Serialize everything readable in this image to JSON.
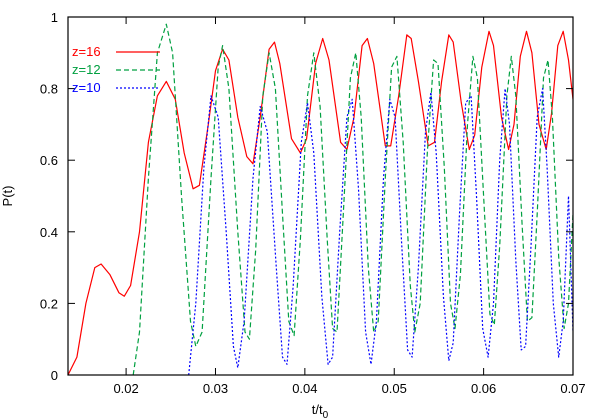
{
  "chart_data": {
    "type": "line",
    "xlabel": "t/t",
    "xlabel_subscript": "0",
    "ylabel": "P(t)",
    "xlim": [
      0.0135,
      0.07
    ],
    "ylim": [
      0,
      1
    ],
    "x_ticks": [
      0.02,
      0.03,
      0.04,
      0.05,
      0.06,
      0.07
    ],
    "x_tick_labels": [
      "0.02",
      "0.03",
      "0.04",
      "0.05",
      "0.06",
      "0.07"
    ],
    "y_ticks": [
      0,
      0.2,
      0.4,
      0.6,
      0.8,
      1
    ],
    "y_tick_labels": [
      "0",
      "0.2",
      "0.4",
      "0.6",
      "0.8",
      "1"
    ],
    "grid": false,
    "legend_position": "top-left",
    "series": [
      {
        "name": "z=16",
        "color": "#ff0000",
        "dash": "solid",
        "points": [
          [
            0.0135,
            0.0
          ],
          [
            0.0145,
            0.05
          ],
          [
            0.0155,
            0.2
          ],
          [
            0.0165,
            0.3
          ],
          [
            0.0172,
            0.31
          ],
          [
            0.0182,
            0.28
          ],
          [
            0.0192,
            0.23
          ],
          [
            0.0198,
            0.22
          ],
          [
            0.0205,
            0.25
          ],
          [
            0.0215,
            0.4
          ],
          [
            0.0225,
            0.65
          ],
          [
            0.0235,
            0.78
          ],
          [
            0.0245,
            0.82
          ],
          [
            0.0255,
            0.77
          ],
          [
            0.0265,
            0.62
          ],
          [
            0.0275,
            0.52
          ],
          [
            0.0282,
            0.53
          ],
          [
            0.0292,
            0.7
          ],
          [
            0.03,
            0.85
          ],
          [
            0.0308,
            0.91
          ],
          [
            0.0315,
            0.88
          ],
          [
            0.0325,
            0.72
          ],
          [
            0.0335,
            0.61
          ],
          [
            0.0342,
            0.59
          ],
          [
            0.035,
            0.72
          ],
          [
            0.036,
            0.91
          ],
          [
            0.0366,
            0.93
          ],
          [
            0.0372,
            0.87
          ],
          [
            0.0385,
            0.66
          ],
          [
            0.0395,
            0.62
          ],
          [
            0.0402,
            0.66
          ],
          [
            0.0412,
            0.87
          ],
          [
            0.042,
            0.94
          ],
          [
            0.0427,
            0.88
          ],
          [
            0.044,
            0.65
          ],
          [
            0.0447,
            0.63
          ],
          [
            0.0455,
            0.72
          ],
          [
            0.0464,
            0.92
          ],
          [
            0.047,
            0.94
          ],
          [
            0.0477,
            0.87
          ],
          [
            0.049,
            0.64
          ],
          [
            0.0496,
            0.64
          ],
          [
            0.0505,
            0.78
          ],
          [
            0.0514,
            0.95
          ],
          [
            0.0519,
            0.94
          ],
          [
            0.0527,
            0.82
          ],
          [
            0.0538,
            0.64
          ],
          [
            0.0545,
            0.65
          ],
          [
            0.0553,
            0.82
          ],
          [
            0.0561,
            0.95
          ],
          [
            0.0566,
            0.93
          ],
          [
            0.0575,
            0.76
          ],
          [
            0.0584,
            0.63
          ],
          [
            0.059,
            0.67
          ],
          [
            0.0598,
            0.86
          ],
          [
            0.0606,
            0.96
          ],
          [
            0.0611,
            0.92
          ],
          [
            0.062,
            0.72
          ],
          [
            0.0628,
            0.63
          ],
          [
            0.0634,
            0.7
          ],
          [
            0.0641,
            0.89
          ],
          [
            0.0648,
            0.96
          ],
          [
            0.0654,
            0.9
          ],
          [
            0.0662,
            0.7
          ],
          [
            0.067,
            0.63
          ],
          [
            0.0676,
            0.73
          ],
          [
            0.0683,
            0.92
          ],
          [
            0.0689,
            0.96
          ],
          [
            0.0695,
            0.88
          ],
          [
            0.07,
            0.77
          ]
        ]
      },
      {
        "name": "z=12",
        "color": "#00a040",
        "dash": "5,3",
        "points": [
          [
            0.0208,
            0.0
          ],
          [
            0.0215,
            0.12
          ],
          [
            0.0225,
            0.55
          ],
          [
            0.0235,
            0.9
          ],
          [
            0.0245,
            0.98
          ],
          [
            0.0252,
            0.9
          ],
          [
            0.0262,
            0.5
          ],
          [
            0.0272,
            0.15
          ],
          [
            0.0278,
            0.08
          ],
          [
            0.0285,
            0.12
          ],
          [
            0.0295,
            0.55
          ],
          [
            0.0303,
            0.86
          ],
          [
            0.0308,
            0.92
          ],
          [
            0.0315,
            0.8
          ],
          [
            0.0325,
            0.4
          ],
          [
            0.0333,
            0.12
          ],
          [
            0.0338,
            0.1
          ],
          [
            0.0345,
            0.35
          ],
          [
            0.0353,
            0.78
          ],
          [
            0.036,
            0.9
          ],
          [
            0.0367,
            0.8
          ],
          [
            0.0375,
            0.45
          ],
          [
            0.0382,
            0.15
          ],
          [
            0.0388,
            0.11
          ],
          [
            0.0395,
            0.38
          ],
          [
            0.0403,
            0.78
          ],
          [
            0.041,
            0.9
          ],
          [
            0.0417,
            0.75
          ],
          [
            0.0425,
            0.38
          ],
          [
            0.0431,
            0.13
          ],
          [
            0.0436,
            0.12
          ],
          [
            0.0443,
            0.45
          ],
          [
            0.0451,
            0.83
          ],
          [
            0.0457,
            0.9
          ],
          [
            0.0463,
            0.72
          ],
          [
            0.0471,
            0.3
          ],
          [
            0.0477,
            0.12
          ],
          [
            0.0482,
            0.15
          ],
          [
            0.049,
            0.55
          ],
          [
            0.0497,
            0.86
          ],
          [
            0.0503,
            0.89
          ],
          [
            0.051,
            0.65
          ],
          [
            0.0518,
            0.25
          ],
          [
            0.0523,
            0.12
          ],
          [
            0.0529,
            0.2
          ],
          [
            0.0537,
            0.62
          ],
          [
            0.0544,
            0.88
          ],
          [
            0.0549,
            0.87
          ],
          [
            0.0556,
            0.58
          ],
          [
            0.0563,
            0.2
          ],
          [
            0.0568,
            0.13
          ],
          [
            0.0574,
            0.28
          ],
          [
            0.0582,
            0.7
          ],
          [
            0.0588,
            0.89
          ],
          [
            0.0593,
            0.83
          ],
          [
            0.06,
            0.5
          ],
          [
            0.0607,
            0.17
          ],
          [
            0.0612,
            0.14
          ],
          [
            0.0618,
            0.36
          ],
          [
            0.0626,
            0.78
          ],
          [
            0.0631,
            0.89
          ],
          [
            0.0636,
            0.78
          ],
          [
            0.0643,
            0.42
          ],
          [
            0.0649,
            0.15
          ],
          [
            0.0654,
            0.16
          ],
          [
            0.066,
            0.45
          ],
          [
            0.0667,
            0.83
          ],
          [
            0.0672,
            0.88
          ],
          [
            0.0677,
            0.72
          ],
          [
            0.0684,
            0.33
          ],
          [
            0.069,
            0.13
          ],
          [
            0.0695,
            0.2
          ],
          [
            0.07,
            0.45
          ]
        ]
      },
      {
        "name": "z=10",
        "color": "#0000ff",
        "dash": "2,2",
        "points": [
          [
            0.027,
            0.0
          ],
          [
            0.0278,
            0.2
          ],
          [
            0.0287,
            0.58
          ],
          [
            0.0295,
            0.78
          ],
          [
            0.0303,
            0.72
          ],
          [
            0.0312,
            0.4
          ],
          [
            0.032,
            0.08
          ],
          [
            0.0325,
            0.02
          ],
          [
            0.0332,
            0.15
          ],
          [
            0.0342,
            0.55
          ],
          [
            0.035,
            0.75
          ],
          [
            0.0358,
            0.68
          ],
          [
            0.0368,
            0.3
          ],
          [
            0.0375,
            0.05
          ],
          [
            0.038,
            0.03
          ],
          [
            0.0387,
            0.25
          ],
          [
            0.0396,
            0.65
          ],
          [
            0.0403,
            0.76
          ],
          [
            0.041,
            0.62
          ],
          [
            0.0419,
            0.22
          ],
          [
            0.0426,
            0.03
          ],
          [
            0.0431,
            0.05
          ],
          [
            0.0439,
            0.4
          ],
          [
            0.0447,
            0.72
          ],
          [
            0.0453,
            0.77
          ],
          [
            0.046,
            0.52
          ],
          [
            0.0468,
            0.12
          ],
          [
            0.0474,
            0.03
          ],
          [
            0.048,
            0.15
          ],
          [
            0.0488,
            0.55
          ],
          [
            0.0495,
            0.77
          ],
          [
            0.0501,
            0.72
          ],
          [
            0.0508,
            0.38
          ],
          [
            0.0515,
            0.07
          ],
          [
            0.052,
            0.05
          ],
          [
            0.0527,
            0.3
          ],
          [
            0.0535,
            0.68
          ],
          [
            0.0541,
            0.79
          ],
          [
            0.0547,
            0.62
          ],
          [
            0.0555,
            0.22
          ],
          [
            0.0561,
            0.04
          ],
          [
            0.0566,
            0.09
          ],
          [
            0.0573,
            0.45
          ],
          [
            0.058,
            0.76
          ],
          [
            0.0586,
            0.78
          ],
          [
            0.0592,
            0.5
          ],
          [
            0.0599,
            0.13
          ],
          [
            0.0605,
            0.05
          ],
          [
            0.0611,
            0.2
          ],
          [
            0.0618,
            0.6
          ],
          [
            0.0624,
            0.8
          ],
          [
            0.0629,
            0.7
          ],
          [
            0.0636,
            0.32
          ],
          [
            0.0642,
            0.07
          ],
          [
            0.0647,
            0.08
          ],
          [
            0.0653,
            0.36
          ],
          [
            0.066,
            0.72
          ],
          [
            0.0666,
            0.8
          ],
          [
            0.0671,
            0.58
          ],
          [
            0.0678,
            0.2
          ],
          [
            0.0684,
            0.05
          ],
          [
            0.0689,
            0.15
          ],
          [
            0.0695,
            0.5
          ],
          [
            0.07,
            0.12
          ]
        ]
      }
    ]
  }
}
